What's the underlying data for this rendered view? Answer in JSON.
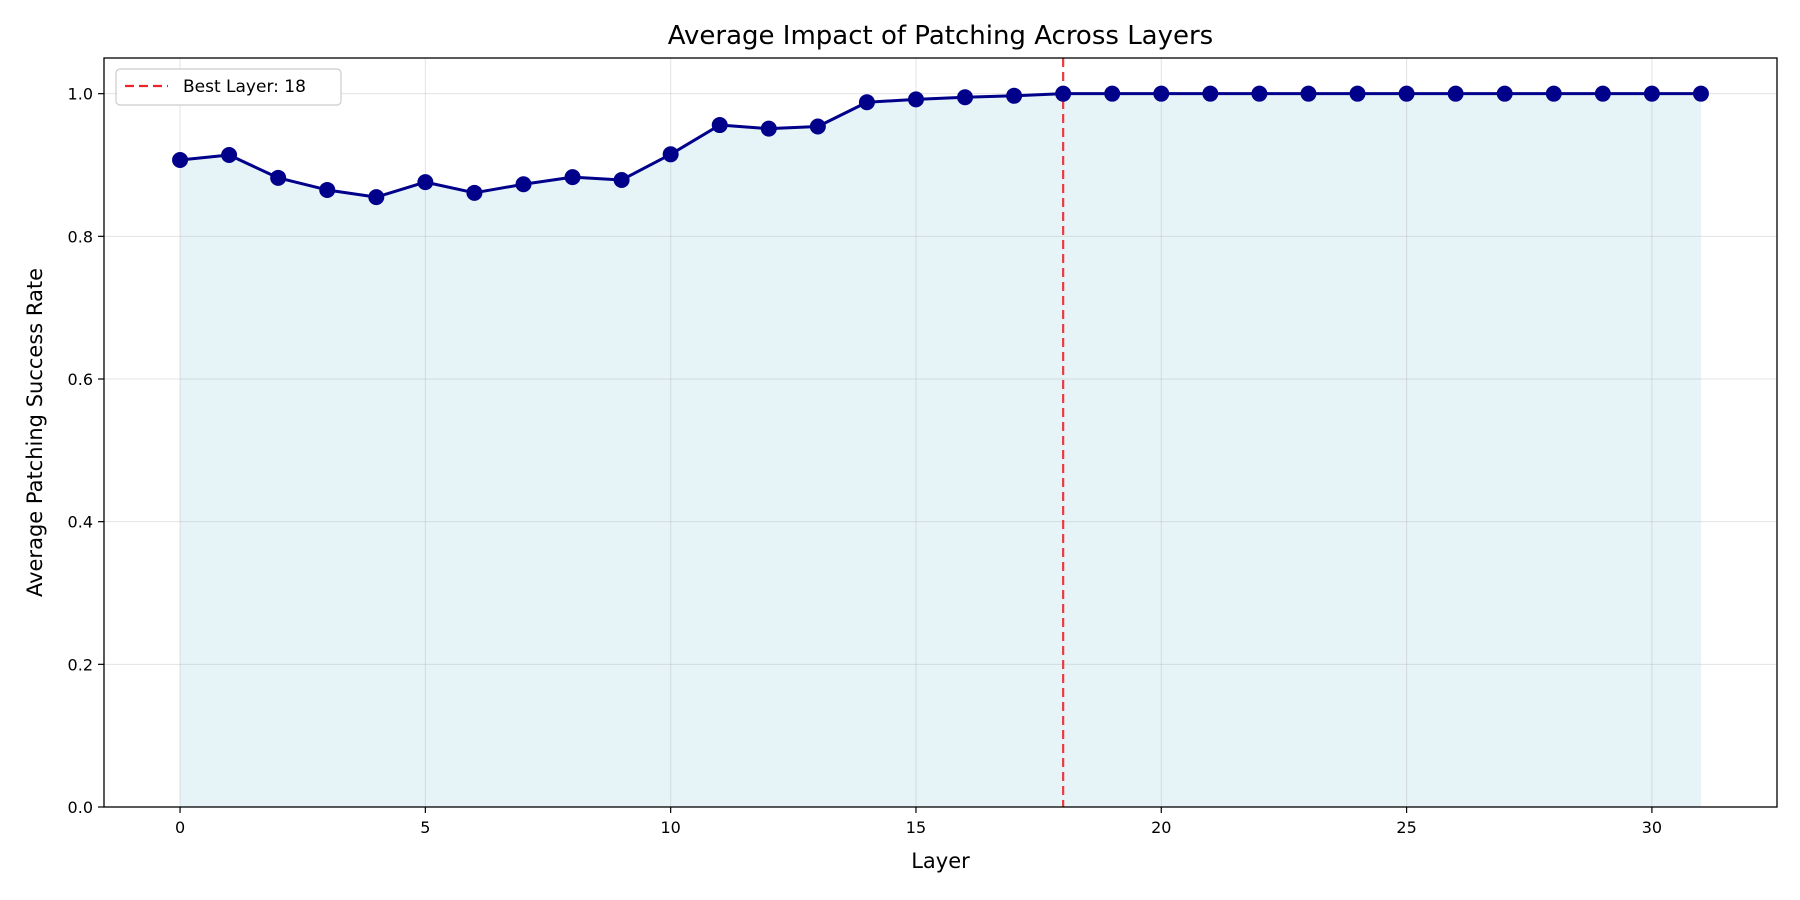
{
  "chart_data": {
    "type": "line",
    "title": "Average Impact of Patching Across Layers",
    "xlabel": "Layer",
    "ylabel": "Average Patching Success Rate",
    "xlim": [
      -1.55,
      32.55
    ],
    "ylim": [
      0.0,
      1.05
    ],
    "x_ticks": [
      0,
      5,
      10,
      15,
      20,
      25,
      30
    ],
    "y_ticks": [
      0.0,
      0.2,
      0.4,
      0.6,
      0.8,
      1.0
    ],
    "grid": true,
    "legend_position": "top-left",
    "series": [
      {
        "x": [
          0,
          1,
          2,
          3,
          4,
          5,
          6,
          7,
          8,
          9,
          10,
          11,
          12,
          13,
          14,
          15,
          16,
          17,
          18,
          19,
          20,
          21,
          22,
          23,
          24,
          25,
          26,
          27,
          28,
          29,
          30,
          31
        ],
        "values": [
          0.907,
          0.914,
          0.882,
          0.865,
          0.855,
          0.876,
          0.861,
          0.873,
          0.883,
          0.879,
          0.915,
          0.956,
          0.951,
          0.954,
          0.988,
          0.992,
          0.995,
          0.997,
          1.0,
          1.0,
          1.0,
          1.0,
          1.0,
          1.0,
          1.0,
          1.0,
          1.0,
          1.0,
          1.0,
          1.0,
          1.0,
          1.0
        ],
        "color": "#00008b",
        "fill_color": "#add8e6"
      }
    ],
    "annotations": [
      {
        "type": "vline",
        "x": 18,
        "label": "Best Layer: 18",
        "color": "#e8262b",
        "style": "dashed"
      }
    ]
  }
}
